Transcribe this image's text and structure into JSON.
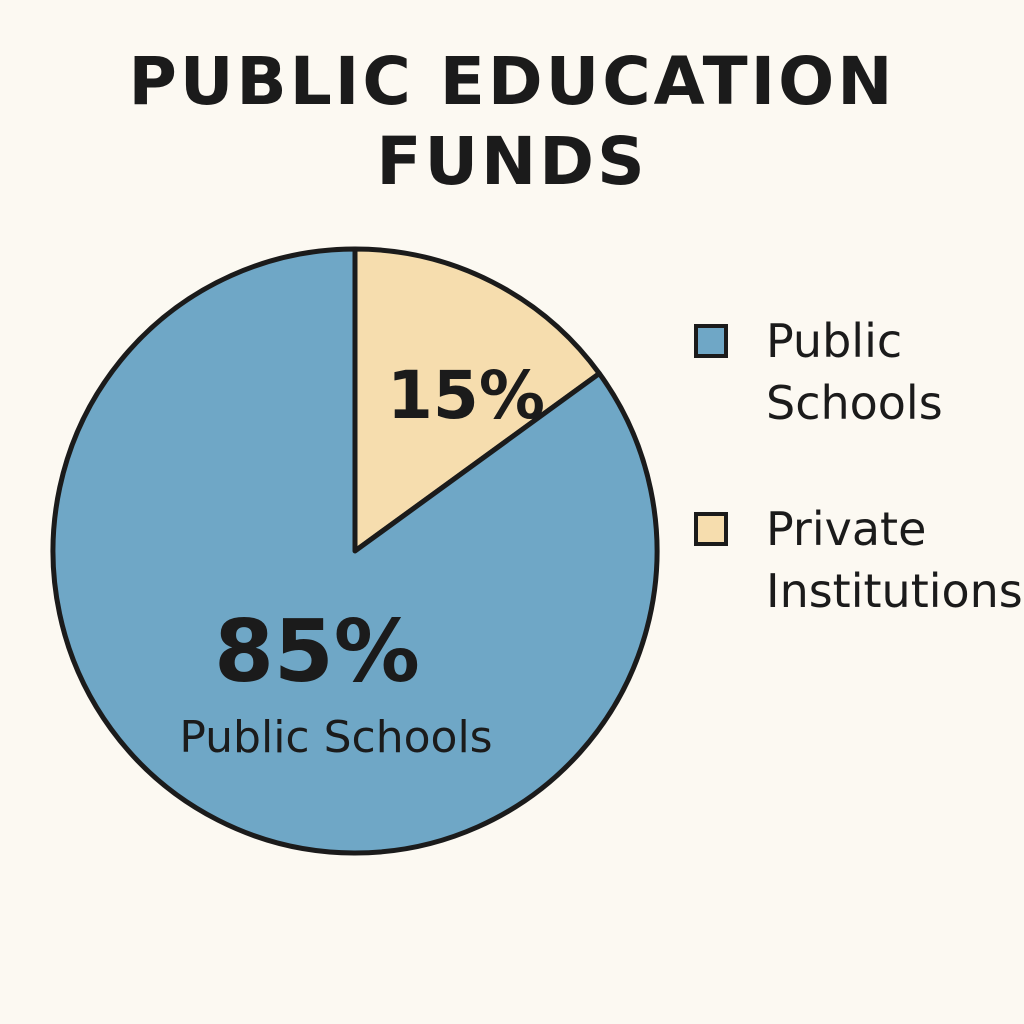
{
  "colors": {
    "background": "#fcf9f2",
    "outline": "#1b1b1b",
    "public": "#6fa7c6",
    "private": "#f6ddae"
  },
  "chart_data": {
    "type": "pie",
    "title_lines": [
      "PUBLIC EDUCATION",
      "FUNDS"
    ],
    "slices": [
      {
        "label": "Public Schools",
        "value": 85,
        "value_label": "85%",
        "inside_label": "Public Schools",
        "color": "#6fa7c6"
      },
      {
        "label": "Private Institutions",
        "value": 15,
        "value_label": "15%",
        "inside_label": "",
        "color": "#f6ddae"
      }
    ],
    "legend": {
      "position": "right",
      "entries": [
        {
          "label": "Public\nSchools",
          "color": "#6fa7c6"
        },
        {
          "label": "Private\nInstitutions",
          "color": "#f6ddae"
        }
      ]
    }
  }
}
